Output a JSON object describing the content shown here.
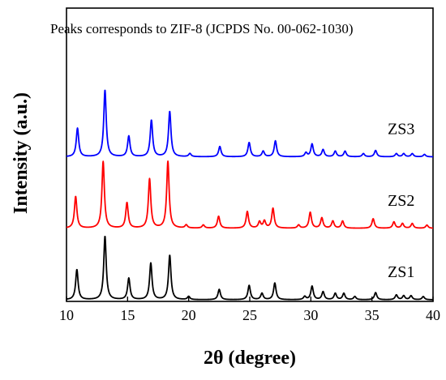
{
  "chart_data": {
    "type": "line",
    "xlabel": "2θ (degree)",
    "ylabel": "Intensity (a.u.)",
    "annotation": "Peaks corresponds to ZIF-8 (JCPDS No. 00-062-1030)",
    "xlim": [
      10,
      40
    ],
    "xticks": [
      "10",
      "15",
      "20",
      "25",
      "30",
      "35",
      "40"
    ],
    "y_ticks_shown": false,
    "peak_width": 0.12,
    "series": [
      {
        "name": "ZS3",
        "color": "#0000ff",
        "offset": 1.8,
        "peaks": [
          [
            10.9,
            0.36
          ],
          [
            13.15,
            0.84
          ],
          [
            15.1,
            0.26
          ],
          [
            16.95,
            0.46
          ],
          [
            18.45,
            0.57
          ],
          [
            20.1,
            0.04
          ],
          [
            22.55,
            0.13
          ],
          [
            24.95,
            0.18
          ],
          [
            26.1,
            0.07
          ],
          [
            27.1,
            0.2
          ],
          [
            29.6,
            0.05
          ],
          [
            30.1,
            0.16
          ],
          [
            31.0,
            0.09
          ],
          [
            32.0,
            0.07
          ],
          [
            32.8,
            0.07
          ],
          [
            34.3,
            0.04
          ],
          [
            35.3,
            0.08
          ],
          [
            37.0,
            0.04
          ],
          [
            37.6,
            0.04
          ],
          [
            38.3,
            0.04
          ],
          [
            39.3,
            0.03
          ]
        ]
      },
      {
        "name": "ZS2",
        "color": "#ff0000",
        "offset": 0.9,
        "peaks": [
          [
            10.75,
            0.4
          ],
          [
            13.0,
            0.84
          ],
          [
            14.95,
            0.32
          ],
          [
            16.8,
            0.62
          ],
          [
            18.3,
            0.84
          ],
          [
            19.8,
            0.04
          ],
          [
            21.2,
            0.04
          ],
          [
            22.45,
            0.15
          ],
          [
            24.8,
            0.21
          ],
          [
            25.8,
            0.08
          ],
          [
            26.2,
            0.09
          ],
          [
            26.9,
            0.25
          ],
          [
            29.0,
            0.04
          ],
          [
            29.95,
            0.2
          ],
          [
            30.9,
            0.13
          ],
          [
            31.8,
            0.09
          ],
          [
            32.6,
            0.09
          ],
          [
            35.1,
            0.12
          ],
          [
            36.8,
            0.08
          ],
          [
            37.5,
            0.06
          ],
          [
            38.3,
            0.06
          ],
          [
            39.5,
            0.04
          ]
        ]
      },
      {
        "name": "ZS1",
        "color": "#000000",
        "offset": 0.0,
        "peaks": [
          [
            10.85,
            0.38
          ],
          [
            13.15,
            0.8
          ],
          [
            15.1,
            0.27
          ],
          [
            16.9,
            0.46
          ],
          [
            18.45,
            0.56
          ],
          [
            20.0,
            0.04
          ],
          [
            22.5,
            0.13
          ],
          [
            24.95,
            0.18
          ],
          [
            26.0,
            0.08
          ],
          [
            27.05,
            0.21
          ],
          [
            29.5,
            0.04
          ],
          [
            30.1,
            0.17
          ],
          [
            31.0,
            0.1
          ],
          [
            32.0,
            0.08
          ],
          [
            32.7,
            0.08
          ],
          [
            33.6,
            0.04
          ],
          [
            35.3,
            0.09
          ],
          [
            37.0,
            0.06
          ],
          [
            37.6,
            0.05
          ],
          [
            38.2,
            0.05
          ],
          [
            39.2,
            0.04
          ]
        ]
      }
    ]
  }
}
